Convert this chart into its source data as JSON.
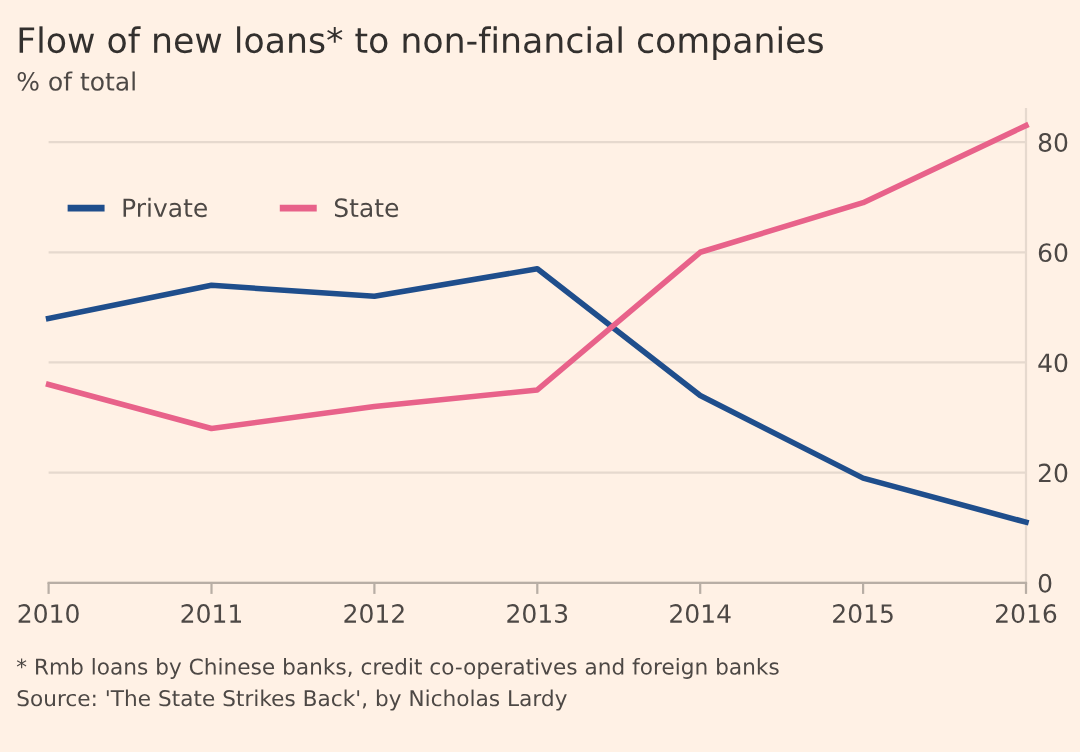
{
  "chart_data": {
    "type": "line",
    "title": "Flow of new loans* to non-financial companies",
    "ylabel": "% of total",
    "x": [
      2010,
      2011,
      2012,
      2013,
      2014,
      2015,
      2016
    ],
    "series": [
      {
        "name": "Private",
        "color": "#1f4e8c",
        "values": [
          48,
          54,
          52,
          57,
          34,
          19,
          11
        ]
      },
      {
        "name": "State",
        "color": "#e8628a",
        "values": [
          36,
          28,
          32,
          35,
          60,
          69,
          83
        ]
      }
    ],
    "xlim": [
      2010,
      2016
    ],
    "xticks": [
      2010,
      2011,
      2012,
      2013,
      2014,
      2015,
      2016
    ],
    "ylim": [
      0,
      86
    ],
    "yticks": [
      0,
      20,
      40,
      60,
      80
    ],
    "grid": "y",
    "legend": "top left",
    "marker": "none",
    "line_style": "solid",
    "annotations": [
      "* Rmb loans by Chinese banks, credit co-operatives and foreign banks",
      "Source: 'The State Strikes Back', by Nicholas Lardy"
    ]
  }
}
